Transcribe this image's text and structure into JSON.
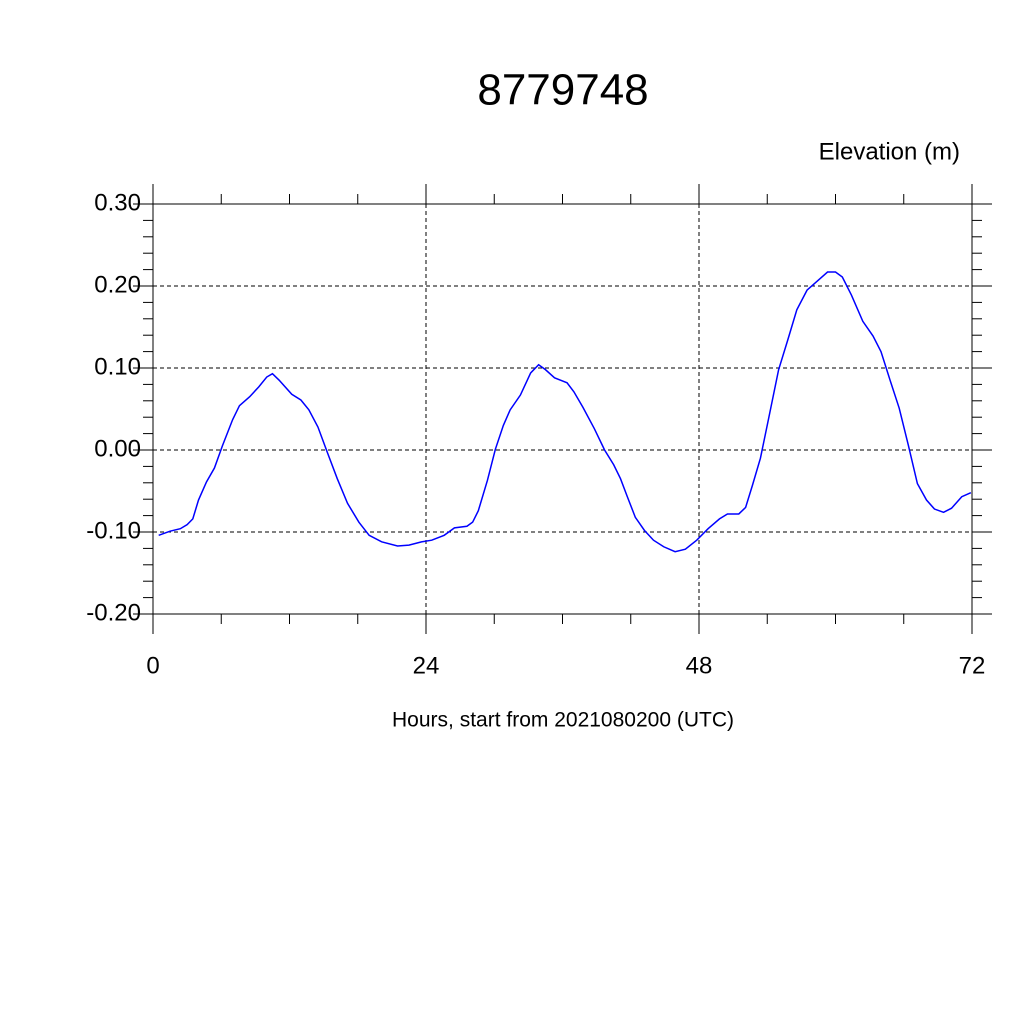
{
  "chart_data": {
    "type": "line",
    "title": "8779748",
    "subtitle": "Elevation (m)",
    "x_label": "Hours, start from 2021080200 (UTC)",
    "xlim": [
      0,
      72
    ],
    "xticks": [
      0,
      24,
      48,
      72
    ],
    "xminorticks": [
      6,
      12,
      18,
      30,
      36,
      42,
      54,
      60,
      66
    ],
    "ylim": [
      -0.2,
      0.3
    ],
    "yticks": [
      {
        "value": -0.2,
        "label": "-0.20"
      },
      {
        "value": -0.1,
        "label": "-0.10"
      },
      {
        "value": 0,
        "label": "0.00"
      },
      {
        "value": 0.1,
        "label": "0.10"
      },
      {
        "value": 0.2,
        "label": "0.20"
      },
      {
        "value": 0.3,
        "label": "0.30"
      }
    ],
    "yminorticks": [
      -0.18,
      -0.16,
      -0.14,
      -0.12,
      -0.08,
      -0.06,
      -0.04,
      -0.02,
      0.02,
      0.04,
      0.06,
      0.08,
      0.12,
      0.14,
      0.16,
      0.18,
      0.22,
      0.24,
      0.26,
      0.28
    ],
    "grid": true,
    "series": [
      {
        "color": "#0000ff",
        "x": [
          0.5,
          1.5,
          2.4,
          3.0,
          3.5,
          4.0,
          4.7,
          5.4,
          6.1,
          7.0,
          7.6,
          8.5,
          9.3,
          10.0,
          10.5,
          11.1,
          12.2,
          13.0,
          13.7,
          14.5,
          15.3,
          16.2,
          17.1,
          18.1,
          19.0,
          20.1,
          21.5,
          22.5,
          23.6,
          24.5,
          25.6,
          26.5,
          27.6,
          28.1,
          28.6,
          29.4,
          30.1,
          30.8,
          31.4,
          32.3,
          33.2,
          33.9,
          34.5,
          35.3,
          36.4,
          37.0,
          37.8,
          38.8,
          39.7,
          40.5,
          41.1,
          41.7,
          42.4,
          43.2,
          44.0,
          44.9,
          45.9,
          46.8,
          47.8,
          48.8,
          49.8,
          50.5,
          51.5,
          52.1,
          52.7,
          53.4,
          54.1,
          55.0,
          55.8,
          56.6,
          57.5,
          58.4,
          59.3,
          60.0,
          60.6,
          61.4,
          62.4,
          63.3,
          64.0,
          64.8,
          65.6,
          66.4,
          67.2,
          68.0,
          68.7,
          69.5,
          70.2,
          71.1,
          71.9
        ],
        "values": [
          -0.104,
          -0.099,
          -0.096,
          -0.091,
          -0.084,
          -0.061,
          -0.039,
          -0.022,
          0.005,
          0.037,
          0.054,
          0.065,
          0.077,
          0.089,
          0.093,
          0.085,
          0.068,
          0.061,
          0.049,
          0.028,
          -0.002,
          -0.035,
          -0.065,
          -0.088,
          -0.104,
          -0.112,
          -0.117,
          -0.116,
          -0.112,
          -0.11,
          -0.104,
          -0.095,
          -0.093,
          -0.088,
          -0.074,
          -0.037,
          0.001,
          0.03,
          0.049,
          0.067,
          0.094,
          0.104,
          0.098,
          0.088,
          0.082,
          0.071,
          0.052,
          0.026,
          0.0,
          -0.018,
          -0.035,
          -0.057,
          -0.082,
          -0.098,
          -0.11,
          -0.118,
          -0.124,
          -0.121,
          -0.11,
          -0.096,
          -0.084,
          -0.078,
          -0.078,
          -0.07,
          -0.043,
          -0.01,
          0.037,
          0.098,
          0.134,
          0.171,
          0.195,
          0.206,
          0.217,
          0.217,
          0.211,
          0.189,
          0.157,
          0.139,
          0.12,
          0.085,
          0.051,
          0.006,
          -0.041,
          -0.061,
          -0.072,
          -0.076,
          -0.071,
          -0.057,
          -0.052
        ]
      }
    ]
  }
}
